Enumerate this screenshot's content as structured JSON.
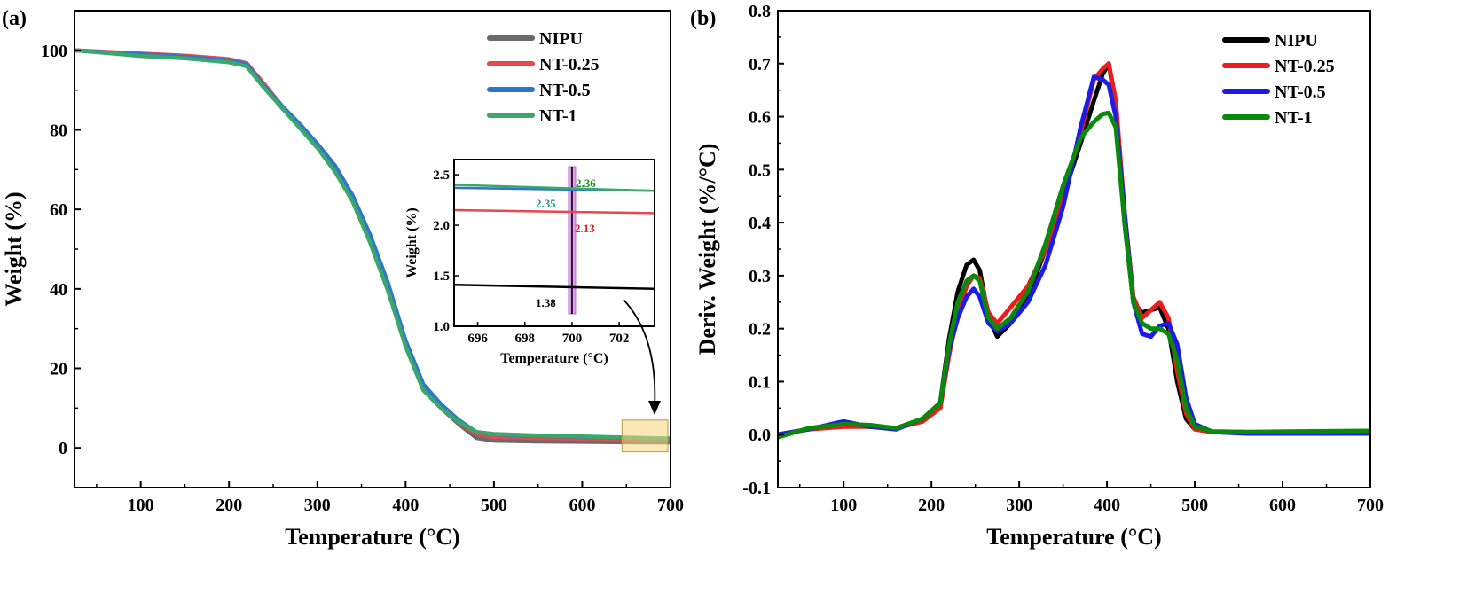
{
  "chart_data": [
    {
      "panel_label": "(a)",
      "type": "line",
      "xlabel": "Temperature (°C)",
      "ylabel": "Weight (%)",
      "xlim": [
        25,
        700
      ],
      "ylim": [
        -10,
        110
      ],
      "xticks": [
        100,
        200,
        300,
        400,
        500,
        600,
        700
      ],
      "yticks": [
        0,
        20,
        40,
        60,
        80,
        100
      ],
      "legend_position": "top-right",
      "series": [
        {
          "name": "NIPU",
          "color": "#6b6b6b",
          "x": [
            25,
            100,
            150,
            200,
            220,
            240,
            260,
            280,
            300,
            320,
            340,
            360,
            380,
            400,
            420,
            440,
            460,
            480,
            500,
            550,
            600,
            650,
            700
          ],
          "y": [
            100,
            99,
            98.5,
            97.6,
            96.5,
            91,
            85.5,
            81,
            76,
            70,
            62,
            52,
            40,
            26,
            15,
            10,
            6,
            2.5,
            1.8,
            1.6,
            1.5,
            1.4,
            1.38
          ]
        },
        {
          "name": "NT-0.25",
          "color": "#e8474c",
          "x": [
            25,
            100,
            150,
            200,
            220,
            240,
            260,
            280,
            300,
            320,
            340,
            360,
            380,
            400,
            420,
            440,
            460,
            480,
            500,
            550,
            600,
            650,
            700
          ],
          "y": [
            100,
            99.2,
            98.7,
            97.8,
            96.8,
            91.5,
            86,
            81,
            76,
            70,
            62,
            52,
            40,
            26,
            15,
            10.5,
            6.5,
            3.5,
            2.8,
            2.5,
            2.3,
            2.2,
            2.13
          ]
        },
        {
          "name": "NT-0.5",
          "color": "#2f74d0",
          "x": [
            25,
            100,
            150,
            200,
            220,
            240,
            260,
            280,
            300,
            320,
            340,
            360,
            380,
            400,
            420,
            440,
            460,
            480,
            500,
            550,
            600,
            650,
            700
          ],
          "y": [
            100,
            99,
            98.4,
            97.5,
            96.5,
            91,
            86,
            81.5,
            76.5,
            71,
            63.5,
            53.5,
            41.5,
            27,
            16,
            11,
            7,
            4,
            3.4,
            3.0,
            2.8,
            2.5,
            2.35
          ]
        },
        {
          "name": "NT-1",
          "color": "#3aa86b",
          "x": [
            25,
            100,
            150,
            200,
            220,
            240,
            260,
            280,
            300,
            320,
            340,
            360,
            380,
            400,
            420,
            440,
            460,
            480,
            500,
            550,
            600,
            650,
            700
          ],
          "y": [
            100,
            98.6,
            98,
            97,
            96,
            90.5,
            85.5,
            80.5,
            75.5,
            69.5,
            62,
            51.5,
            39.5,
            25.5,
            14.5,
            10,
            6.5,
            4,
            3.5,
            3.1,
            2.9,
            2.6,
            2.36
          ]
        }
      ],
      "highlight_box": {
        "x": [
          645,
          697
        ],
        "y": [
          -1,
          7
        ]
      },
      "inset": {
        "xlabel": "Temperature (°C)",
        "ylabel": "Weight (%)",
        "xlim": [
          695,
          703.5
        ],
        "ylim": [
          1.0,
          2.65
        ],
        "xticks": [
          696,
          698,
          700,
          702
        ],
        "yticks": [
          1.0,
          1.5,
          2.0,
          2.5
        ],
        "marker_x": 700,
        "series": [
          {
            "name": "NIPU",
            "color": "#000000",
            "x": [
              695,
              703.5
            ],
            "y": [
              1.41,
              1.37
            ]
          },
          {
            "name": "NT-0.25",
            "color": "#e8474c",
            "x": [
              695,
              703.5
            ],
            "y": [
              2.15,
              2.12
            ]
          },
          {
            "name": "NT-0.5",
            "color": "#2f74d0",
            "x": [
              695,
              703.5
            ],
            "y": [
              2.37,
              2.34
            ]
          },
          {
            "name": "NT-1",
            "color": "#3aa86b",
            "x": [
              695,
              703.5
            ],
            "y": [
              2.4,
              2.34
            ]
          }
        ],
        "annotations": [
          {
            "text": "2.36",
            "color": "#1a8a1a"
          },
          {
            "text": "2.35",
            "color": "#2a9a8a"
          },
          {
            "text": "2.13",
            "color": "#e02020"
          },
          {
            "text": "1.38",
            "color": "#000000"
          }
        ]
      }
    },
    {
      "panel_label": "(b)",
      "type": "line",
      "xlabel": "Temperature (°C)",
      "ylabel": "Deriv. Weight (%/°C)",
      "xlim": [
        25,
        700
      ],
      "ylim": [
        -0.1,
        0.8
      ],
      "xticks": [
        100,
        200,
        300,
        400,
        500,
        600,
        700
      ],
      "yticks": [
        -0.1,
        0.0,
        0.1,
        0.2,
        0.3,
        0.4,
        0.5,
        0.6,
        0.7,
        0.8
      ],
      "legend_position": "top-right",
      "series": [
        {
          "name": "NIPU",
          "color": "#000000",
          "x": [
            25,
            60,
            100,
            130,
            160,
            190,
            210,
            220,
            230,
            240,
            248,
            255,
            265,
            275,
            290,
            310,
            330,
            350,
            370,
            385,
            395,
            402,
            410,
            420,
            430,
            440,
            450,
            460,
            470,
            480,
            490,
            500,
            520,
            560,
            620,
            700
          ],
          "y": [
            0,
            0.01,
            0.02,
            0.015,
            0.012,
            0.03,
            0.06,
            0.18,
            0.27,
            0.32,
            0.33,
            0.31,
            0.22,
            0.185,
            0.21,
            0.26,
            0.35,
            0.45,
            0.55,
            0.63,
            0.68,
            0.7,
            0.62,
            0.4,
            0.25,
            0.23,
            0.235,
            0.24,
            0.2,
            0.1,
            0.03,
            0.01,
            0.005,
            0.003,
            0.004,
            0.005
          ]
        },
        {
          "name": "NT-0.25",
          "color": "#ee1c1c",
          "x": [
            25,
            60,
            100,
            130,
            160,
            190,
            210,
            220,
            230,
            240,
            248,
            255,
            265,
            275,
            290,
            310,
            330,
            350,
            370,
            385,
            395,
            402,
            410,
            420,
            430,
            440,
            450,
            460,
            470,
            480,
            490,
            500,
            520,
            560,
            620,
            700
          ],
          "y": [
            0,
            0.01,
            0.015,
            0.015,
            0.012,
            0.025,
            0.05,
            0.15,
            0.23,
            0.28,
            0.3,
            0.295,
            0.23,
            0.21,
            0.24,
            0.28,
            0.35,
            0.45,
            0.57,
            0.67,
            0.69,
            0.7,
            0.63,
            0.42,
            0.26,
            0.22,
            0.235,
            0.25,
            0.22,
            0.12,
            0.04,
            0.01,
            0.005,
            0.003,
            0.003,
            0.005
          ]
        },
        {
          "name": "NT-0.5",
          "color": "#1c1ce6",
          "x": [
            25,
            60,
            100,
            130,
            160,
            190,
            210,
            220,
            230,
            240,
            248,
            255,
            265,
            275,
            290,
            310,
            330,
            350,
            370,
            385,
            395,
            402,
            410,
            420,
            430,
            440,
            450,
            460,
            470,
            480,
            490,
            500,
            520,
            560,
            620,
            700
          ],
          "y": [
            0,
            0.01,
            0.025,
            0.015,
            0.01,
            0.03,
            0.06,
            0.16,
            0.22,
            0.26,
            0.275,
            0.26,
            0.21,
            0.195,
            0.21,
            0.25,
            0.32,
            0.43,
            0.58,
            0.675,
            0.67,
            0.66,
            0.6,
            0.42,
            0.25,
            0.19,
            0.185,
            0.205,
            0.21,
            0.17,
            0.07,
            0.02,
            0.005,
            0.002,
            0.002,
            0.002
          ]
        },
        {
          "name": "NT-1",
          "color": "#0a8a0a",
          "x": [
            25,
            60,
            100,
            130,
            160,
            190,
            210,
            220,
            230,
            240,
            248,
            255,
            265,
            275,
            290,
            310,
            330,
            350,
            370,
            385,
            395,
            402,
            410,
            420,
            430,
            440,
            450,
            460,
            470,
            480,
            490,
            500,
            520,
            560,
            620,
            700
          ],
          "y": [
            -0.005,
            0.012,
            0.02,
            0.018,
            0.012,
            0.03,
            0.06,
            0.17,
            0.25,
            0.29,
            0.3,
            0.29,
            0.22,
            0.2,
            0.22,
            0.27,
            0.36,
            0.47,
            0.56,
            0.59,
            0.605,
            0.607,
            0.58,
            0.4,
            0.25,
            0.21,
            0.2,
            0.2,
            0.19,
            0.14,
            0.05,
            0.015,
            0.006,
            0.005,
            0.006,
            0.007
          ]
        }
      ]
    }
  ]
}
